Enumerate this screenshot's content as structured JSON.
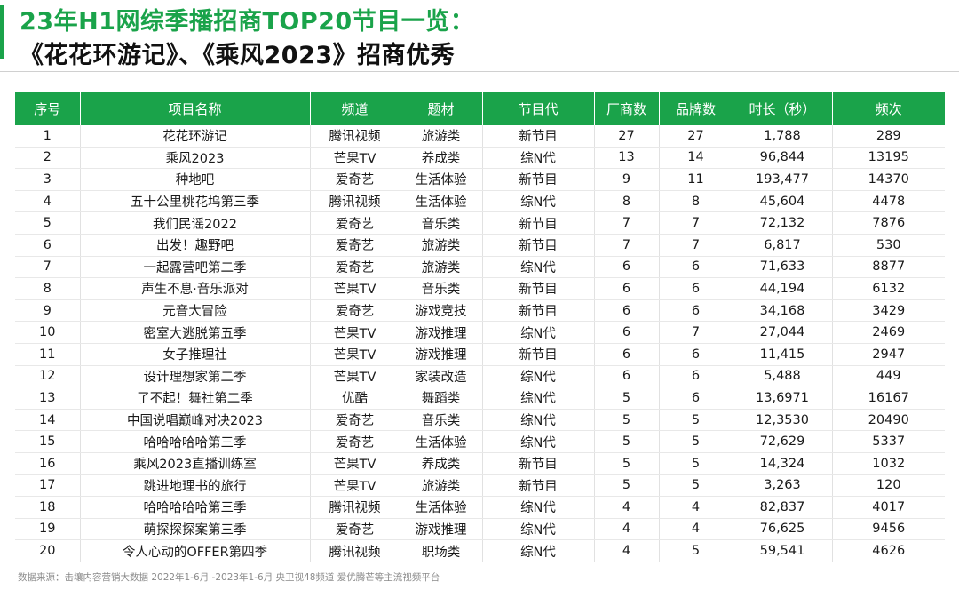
{
  "title": {
    "line1": "23年H1网综季播招商TOP20节目一览：",
    "line2": "《花花环游记》、《乘风2023》招商优秀"
  },
  "colors": {
    "accent": "#1aa34a",
    "header_text": "#ffffff"
  },
  "table": {
    "headers": [
      "序号",
      "项目名称",
      "频道",
      "题材",
      "节目代",
      "厂商数",
      "品牌数",
      "时长（秒）",
      "频次"
    ],
    "rows": [
      [
        "1",
        "花花环游记",
        "腾讯视频",
        "旅游类",
        "新节目",
        "27",
        "27",
        "1,788",
        "289"
      ],
      [
        "2",
        "乘风2023",
        "芒果TV",
        "养成类",
        "综N代",
        "13",
        "14",
        "96,844",
        "13195"
      ],
      [
        "3",
        "种地吧",
        "爱奇艺",
        "生活体验",
        "新节目",
        "9",
        "11",
        "193,477",
        "14370"
      ],
      [
        "4",
        "五十公里桃花坞第三季",
        "腾讯视频",
        "生活体验",
        "综N代",
        "8",
        "8",
        "45,604",
        "4478"
      ],
      [
        "5",
        "我们民谣2022",
        "爱奇艺",
        "音乐类",
        "新节目",
        "7",
        "7",
        "72,132",
        "7876"
      ],
      [
        "6",
        "出发！趣野吧",
        "爱奇艺",
        "旅游类",
        "新节目",
        "7",
        "7",
        "6,817",
        "530"
      ],
      [
        "7",
        "一起露营吧第二季",
        "爱奇艺",
        "旅游类",
        "综N代",
        "6",
        "6",
        "71,633",
        "8877"
      ],
      [
        "8",
        "声生不息·音乐派对",
        "芒果TV",
        "音乐类",
        "新节目",
        "6",
        "6",
        "44,194",
        "6132"
      ],
      [
        "9",
        "元音大冒险",
        "爱奇艺",
        "游戏竞技",
        "新节目",
        "6",
        "6",
        "34,168",
        "3429"
      ],
      [
        "10",
        "密室大逃脱第五季",
        "芒果TV",
        "游戏推理",
        "综N代",
        "6",
        "7",
        "27,044",
        "2469"
      ],
      [
        "11",
        "女子推理社",
        "芒果TV",
        "游戏推理",
        "新节目",
        "6",
        "6",
        "11,415",
        "2947"
      ],
      [
        "12",
        "设计理想家第二季",
        "芒果TV",
        "家装改造",
        "综N代",
        "6",
        "6",
        "5,488",
        "449"
      ],
      [
        "13",
        "了不起！舞社第二季",
        "优酷",
        "舞蹈类",
        "综N代",
        "5",
        "6",
        "13,6971",
        "16167"
      ],
      [
        "14",
        "中国说唱巅峰对决2023",
        "爱奇艺",
        "音乐类",
        "综N代",
        "5",
        "5",
        "12,3530",
        "20490"
      ],
      [
        "15",
        "哈哈哈哈哈第三季",
        "爱奇艺",
        "生活体验",
        "综N代",
        "5",
        "5",
        "72,629",
        "5337"
      ],
      [
        "16",
        "乘风2023直播训练室",
        "芒果TV",
        "养成类",
        "新节目",
        "5",
        "5",
        "14,324",
        "1032"
      ],
      [
        "17",
        "跳进地理书的旅行",
        "芒果TV",
        "旅游类",
        "新节目",
        "5",
        "5",
        "3,263",
        "120"
      ],
      [
        "18",
        "哈哈哈哈哈第三季",
        "腾讯视频",
        "生活体验",
        "综N代",
        "4",
        "4",
        "82,837",
        "4017"
      ],
      [
        "19",
        "萌探探探案第三季",
        "爱奇艺",
        "游戏推理",
        "综N代",
        "4",
        "4",
        "76,625",
        "9456"
      ],
      [
        "20",
        "令人心动的OFFER第四季",
        "腾讯视频",
        "职场类",
        "综N代",
        "4",
        "5",
        "59,541",
        "4626"
      ]
    ]
  },
  "source": "数据来源：击壤内容营销大数据 2022年1-6月 -2023年1-6月 央卫视48频道 爱优腾芒等主流视频平台"
}
